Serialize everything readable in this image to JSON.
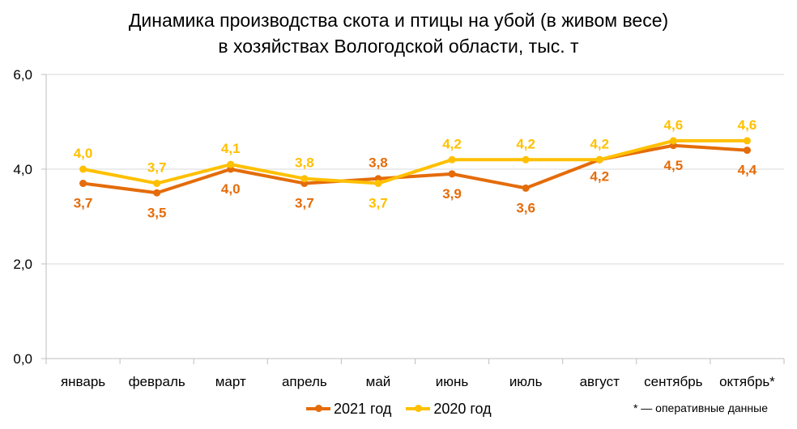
{
  "chart_data": {
    "type": "line",
    "title_lines": [
      "Динамика производства скота и птицы на убой (в живом весе)",
      "в хозяйствах Вологодской области, тыс. т"
    ],
    "categories": [
      "январь",
      "февраль",
      "март",
      "апрель",
      "май",
      "июнь",
      "июль",
      "август",
      "сентябрь",
      "октябрь*"
    ],
    "series": [
      {
        "name": "2021 год",
        "color": "#E46C0A",
        "values": [
          3.7,
          3.5,
          4.0,
          3.7,
          3.8,
          3.9,
          3.6,
          4.2,
          4.5,
          4.4
        ],
        "labels": [
          "3,7",
          "3,5",
          "4,0",
          "3,7",
          "3,8",
          "3,9",
          "3,6",
          "4,2",
          "4,5",
          "4,4"
        ]
      },
      {
        "name": "2020 год",
        "color": "#FFC000",
        "values": [
          4.0,
          3.7,
          4.1,
          3.8,
          3.7,
          4.2,
          4.2,
          4.2,
          4.6,
          4.6
        ],
        "labels": [
          "4,0",
          "3,7",
          "4,1",
          "3,8",
          "3,7",
          "4,2",
          "4,2",
          "4,2",
          "4,6",
          "4,6"
        ]
      }
    ],
    "ylim": [
      0,
      6
    ],
    "yticks": [
      0,
      2,
      4,
      6
    ],
    "ytick_labels": [
      "0,0",
      "2,0",
      "4,0",
      "6,0"
    ],
    "grid": true,
    "legend_position": "bottom",
    "footnote": "* — оперативные данные",
    "grid_color": "#D9D9D9",
    "axis_color": "#BFBFBF"
  }
}
